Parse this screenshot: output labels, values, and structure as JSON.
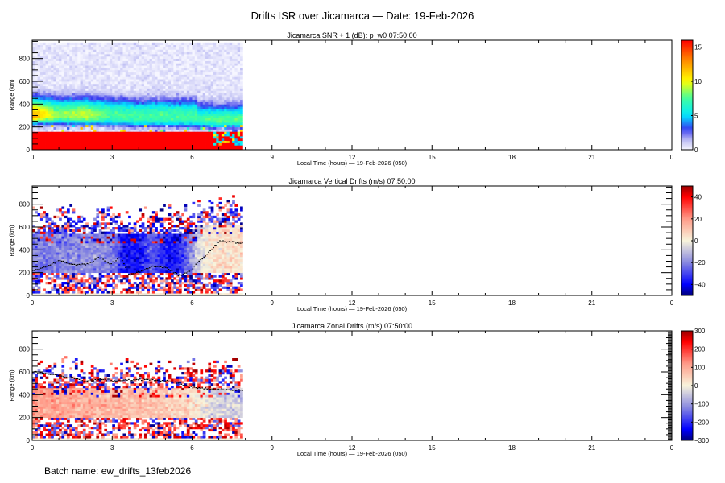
{
  "title": "Drifts ISR over Jicamarca — Date: 19-Feb-2026",
  "batch_label": "Batch name: ew_drifts_13feb2026",
  "chart_data": [
    {
      "type": "heatmap",
      "title": "Jicamarca SNR + 1 (dB): p_w0 07:50:00",
      "xlabel": "Local Time (hours) — 19-Feb-2026 (050)",
      "ylabel": "Range (km)",
      "xlim": [
        0,
        24
      ],
      "ylim": [
        0,
        960
      ],
      "xticks": [
        "0",
        "3",
        "6",
        "9",
        "12",
        "15",
        "18",
        "21",
        "0"
      ],
      "yticks": [
        "0",
        "200",
        "400",
        "600",
        "800"
      ],
      "data_end_hour": 7.9,
      "colorbar": {
        "min": 0,
        "max": 16,
        "ticks": [
          "0",
          "5",
          "10",
          "15"
        ],
        "colormap": "rainbow"
      },
      "model": {
        "hours": [
          0,
          1,
          2,
          3,
          4,
          5,
          6,
          7,
          7.9
        ],
        "layer_peak_km": [
          290,
          280,
          280,
          270,
          260,
          260,
          260,
          250,
          250
        ],
        "layer_peak_snr_db": [
          11,
          7,
          8,
          6,
          6,
          6,
          6,
          7,
          7
        ],
        "clutter_top_km": 170,
        "clutter_snr_db": 16
      }
    },
    {
      "type": "heatmap",
      "title": "Jicamarca Vertical Drifts (m/s) 07:50:00",
      "xlabel": "Local Time (hours) — 19-Feb-2026 (050)",
      "ylabel": "Range (km)",
      "xlim": [
        0,
        24
      ],
      "ylim": [
        0,
        960
      ],
      "xticks": [
        "0",
        "3",
        "6",
        "9",
        "12",
        "15",
        "18",
        "21",
        "0"
      ],
      "yticks": [
        "0",
        "200",
        "400",
        "600",
        "800"
      ],
      "data_end_hour": 7.9,
      "colorbar": {
        "min": -50,
        "max": 50,
        "ticks": [
          "40",
          "20",
          "0",
          "−20",
          "−40"
        ],
        "colormap": "blue-white-red"
      },
      "model": {
        "hours": [
          0,
          1,
          2,
          3,
          3.5,
          4,
          4.5,
          5,
          5.5,
          6,
          6.5,
          7,
          7.9
        ],
        "mean_drift_ms": [
          -22,
          -20,
          -18,
          -20,
          -38,
          -38,
          -25,
          -36,
          -38,
          -15,
          0,
          5,
          5
        ]
      },
      "trace": {
        "hours": [
          0,
          0.5,
          1,
          1.5,
          2,
          2.5,
          2.9,
          3.3,
          3.6,
          4,
          4.5,
          5,
          5.5,
          5.9,
          6.2,
          6.6,
          7,
          7.5,
          7.9
        ],
        "range_km": [
          220,
          260,
          310,
          280,
          270,
          340,
          280,
          340,
          190,
          210,
          260,
          250,
          180,
          210,
          300,
          380,
          480,
          470,
          465
        ]
      }
    },
    {
      "type": "heatmap",
      "title": "Jicamarca Zonal Drifts (m/s) 07:50:00",
      "xlabel": "Local Time (hours) — 19-Feb-2026 (050)",
      "ylabel": "Range (km)",
      "xlim": [
        0,
        24
      ],
      "ylim": [
        0,
        960
      ],
      "xticks": [
        "0",
        "3",
        "6",
        "9",
        "12",
        "15",
        "18",
        "21",
        "0"
      ],
      "yticks": [
        "0",
        "200",
        "400",
        "600",
        "800"
      ],
      "data_end_hour": 7.9,
      "colorbar": {
        "min": -300,
        "max": 300,
        "ticks": [
          "300",
          "200",
          "100",
          "0",
          "−100",
          "−200",
          "−300"
        ],
        "colormap": "blue-white-red"
      },
      "model": {
        "hours": [
          0,
          1,
          2,
          3,
          4,
          5,
          6,
          6.5,
          7,
          7.9
        ],
        "mean_drift_ms": [
          110,
          100,
          90,
          80,
          70,
          60,
          30,
          -20,
          -40,
          -40
        ]
      },
      "trace": {
        "hours": [
          0,
          0.5,
          1,
          1.5,
          2,
          2.5,
          3,
          3.5,
          4,
          4.5,
          5,
          5.5,
          6,
          6.5,
          7,
          7.5,
          7.9
        ],
        "range_km": [
          600,
          590,
          570,
          550,
          520,
          540,
          530,
          530,
          540,
          535,
          525,
          500,
          470,
          455,
          450,
          445,
          440
        ]
      }
    }
  ]
}
